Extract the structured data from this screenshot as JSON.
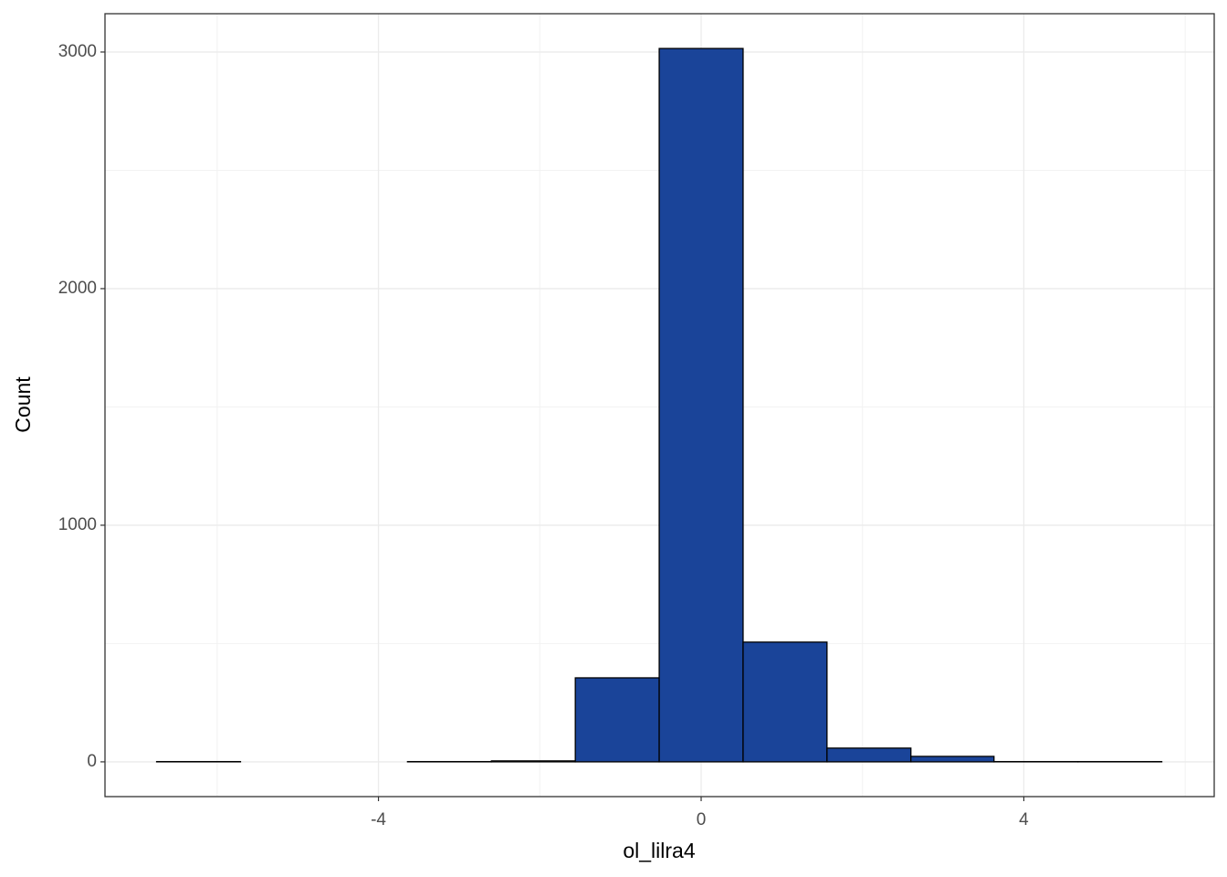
{
  "chart_data": {
    "type": "histogram",
    "x_label": "ol_lilra4",
    "y_label": "Count",
    "bins": [
      -6.75,
      -5.71,
      -4.67,
      -3.64,
      -2.6,
      -1.56,
      -0.52,
      0.52,
      1.56,
      2.6,
      3.63,
      4.67,
      5.71
    ],
    "values": [
      1,
      0,
      0,
      1,
      4,
      355,
      3015,
      506,
      58,
      23,
      1,
      1
    ],
    "color": "#1a4499",
    "xlim": [
      -7.39,
      6.36
    ],
    "xticks": [
      -4,
      0,
      4
    ],
    "ylim": [
      -147,
      3162
    ],
    "yticks": [
      0,
      1000,
      2000,
      3000
    ],
    "grid": true
  }
}
